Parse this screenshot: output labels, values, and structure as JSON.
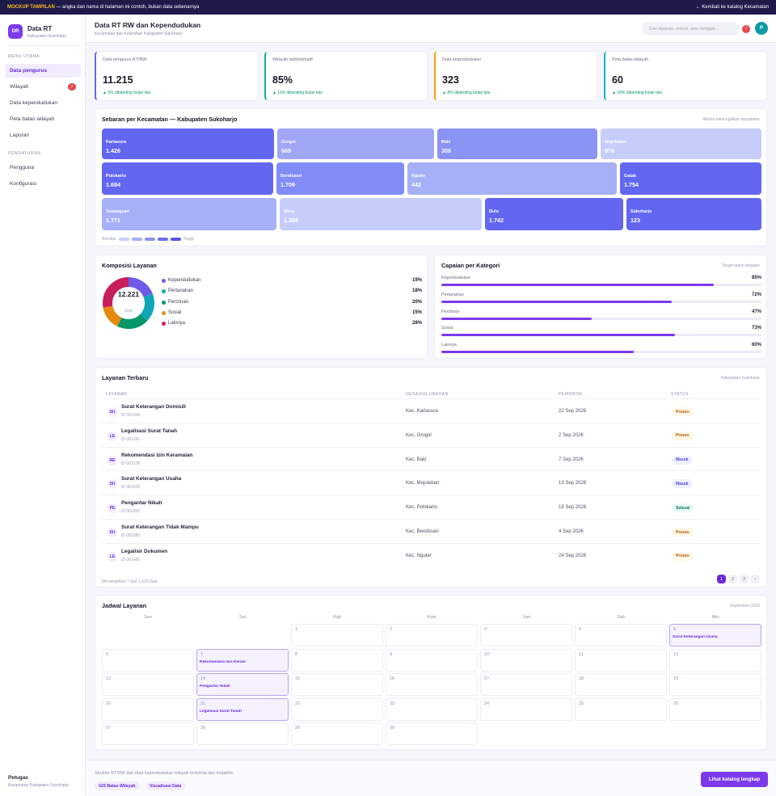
{
  "banner": {
    "tag": "MOCKUP TAMPILAN",
    "text": " — angka dan nama di halaman ini contoh, bukan data sebenarnya",
    "back": "← Kembali ke katalog Kecamatan"
  },
  "brand": {
    "logo": "DR",
    "title": "Data RT",
    "subtitle": "Kabupaten Sukoharjo"
  },
  "sidebar": {
    "section_main": "MENU UTAMA",
    "section_settings": "PENGATURAN",
    "items": [
      {
        "label": "Data pengurus",
        "active": true
      },
      {
        "label": "Wilayah",
        "badge": "7"
      },
      {
        "label": "Data kependudukan"
      },
      {
        "label": "Peta batas wilayah"
      },
      {
        "label": "Laporan"
      }
    ],
    "settings": [
      {
        "label": "Pengguna"
      },
      {
        "label": "Konfigurasi"
      }
    ],
    "footer": {
      "role": "Petugas",
      "area": "Kecamatan Kabupaten Sukoharjo"
    }
  },
  "header": {
    "title": "Data RT RW dan Kependudukan",
    "subtitle": "Kecamatan dan Kelurahan Kabupaten Sukoharjo",
    "search_placeholder": "Cari layanan, nomor, atau tanggal...",
    "notif_count": "7",
    "avatar": "P"
  },
  "stats": [
    {
      "label": "Data pengurus RT/RW",
      "value": "11.215",
      "delta": "▲ 5% dibanding bulan lalu",
      "accent": "#6366f1"
    },
    {
      "label": "Wilayah administratif",
      "value": "85%",
      "delta": "▲ 11% dibanding bulan lalu",
      "accent": "#10b981"
    },
    {
      "label": "Data kependudukan",
      "value": "323",
      "delta": "▲ 8% dibanding bulan lalu",
      "accent": "#f59e0b"
    },
    {
      "label": "Peta batas wilayah",
      "value": "60",
      "delta": "▲ 18% dibanding bulan lalu",
      "accent": "#06b6d4"
    }
  ],
  "treemap": {
    "title": "Sebaran per Kecamatan — Kabupaten Sukoharjo",
    "note": "Warna menunjukkan kepadatan",
    "legend_low": "Rendah",
    "legend_high": "Tinggi",
    "legend_colors": [
      "#c7cdfb",
      "#a5b0f7",
      "#8b93f4",
      "#6d6ff0",
      "#5b55e6"
    ],
    "tiles": [
      {
        "name": "Kartasura",
        "value": "1.426",
        "color": "#6366f1"
      },
      {
        "name": "Grogol",
        "value": "669",
        "color": "#9fa6f5"
      },
      {
        "name": "Baki",
        "value": "306",
        "color": "#8b93f4"
      },
      {
        "name": "Mojolaban",
        "value": "676",
        "color": "#c7cdfb"
      },
      {
        "name": "Polokarto",
        "value": "1.694",
        "color": "#6366f1"
      },
      {
        "name": "Bendosari",
        "value": "1.709",
        "color": "#818cf8"
      },
      {
        "name": "Nguter",
        "value": "442",
        "color": "#a5b0f7"
      },
      {
        "name": "Gatak",
        "value": "1.754",
        "color": "#6366f1"
      },
      {
        "name": "Tawangsari",
        "value": "1.771",
        "color": "#a5b0f7"
      },
      {
        "name": "Weru",
        "value": "1.308",
        "color": "#c7cdfb"
      },
      {
        "name": "Bulu",
        "value": "1.742",
        "color": "#6366f1"
      },
      {
        "name": "Sukoharjo",
        "value": "123",
        "color": "#6366f1"
      }
    ]
  },
  "composition": {
    "title": "Komposisi Layanan",
    "total": "12.221",
    "total_label": "total",
    "items": [
      {
        "name": "Kependudukan",
        "pct": 19,
        "label": "19%",
        "color": "#6d5ce8"
      },
      {
        "name": "Pertanahan",
        "pct": 18,
        "label": "18%",
        "color": "#0ea5b7"
      },
      {
        "name": "Perizinan",
        "pct": 20,
        "label": "20%",
        "color": "#059669"
      },
      {
        "name": "Sosial",
        "pct": 15,
        "label": "15%",
        "color": "#e68a0c"
      },
      {
        "name": "Lainnya",
        "pct": 28,
        "label": "28%",
        "color": "#c81e5b"
      }
    ]
  },
  "achievement": {
    "title": "Capaian per Kategori",
    "note": "Target tahun berjalan",
    "items": [
      {
        "name": "Kependudukan",
        "value": 85,
        "label": "85%"
      },
      {
        "name": "Pertanahan",
        "value": 72,
        "label": "72%"
      },
      {
        "name": "Perizinan",
        "value": 47,
        "label": "47%"
      },
      {
        "name": "Sosial",
        "value": 73,
        "label": "73%"
      },
      {
        "name": "Lainnya",
        "value": 60,
        "label": "60%"
      }
    ]
  },
  "services": {
    "title": "Layanan Terbaru",
    "note": "Kabupaten Sukoharjo",
    "columns": [
      "LAYANAN",
      "DESA/KELURAHAN",
      "PEMOHON",
      "STATUS"
    ],
    "rows": [
      {
        "ini": "SU",
        "title": "Surat Keterangan Domisili",
        "id": "ID 001204",
        "place": "Kec. Kartasura",
        "date": "22 Sep 2026",
        "status": "Proses"
      },
      {
        "ini": "LE",
        "title": "Legalisasi Surat Tanah",
        "id": "ID 001241",
        "place": "Kec. Grogol",
        "date": "2 Sep 2026",
        "status": "Proses"
      },
      {
        "ini": "RE",
        "title": "Rekomendasi Izin Keramaian",
        "id": "ID 001278",
        "place": "Kec. Baki",
        "date": "7 Sep 2026",
        "status": "Masuk"
      },
      {
        "ini": "SU",
        "title": "Surat Keterangan Usaha",
        "id": "ID 001315",
        "place": "Kec. Mojolaban",
        "date": "13 Sep 2026",
        "status": "Masuk"
      },
      {
        "ini": "PE",
        "title": "Pengantar Nikah",
        "id": "ID 001352",
        "place": "Kec. Polokarto",
        "date": "18 Sep 2026",
        "status": "Selesai"
      },
      {
        "ini": "SU",
        "title": "Surat Keterangan Tidak Mampu",
        "id": "ID 001389",
        "place": "Kec. Bendosari",
        "date": "4 Sep 2026",
        "status": "Proses"
      },
      {
        "ini": "LE",
        "title": "Legalisir Dokumen",
        "id": "ID 001426",
        "place": "Kec. Nguter",
        "date": "24 Sep 2026",
        "status": "Proses"
      }
    ],
    "summary": "Menampilkan 7 dari 1.620 data",
    "pages": [
      "1",
      "2",
      "3",
      "›"
    ]
  },
  "schedule": {
    "title": "Jadwal Layanan",
    "month": "September 2026",
    "days": [
      "Sen",
      "Sel",
      "Rab",
      "Kam",
      "Jum",
      "Sab",
      "Min"
    ],
    "cells": [
      {
        "d": "1",
        "ev": ""
      },
      {
        "d": "2",
        "ev": ""
      },
      {
        "d": "3",
        "ev": ""
      },
      {
        "d": "4",
        "ev": ""
      },
      {
        "d": "5",
        "ev": "Surat Keterangan Usaha"
      },
      {
        "d": "6",
        "ev": ""
      },
      {
        "d": "7",
        "ev": "Rekomendasi Izin Keram"
      },
      {
        "d": "8",
        "ev": ""
      },
      {
        "d": "9",
        "ev": ""
      },
      {
        "d": "10",
        "ev": ""
      },
      {
        "d": "11",
        "ev": ""
      },
      {
        "d": "12",
        "ev": ""
      },
      {
        "d": "13",
        "ev": ""
      },
      {
        "d": "14",
        "ev": "Pengantar Nikah"
      },
      {
        "d": "15",
        "ev": ""
      },
      {
        "d": "16",
        "ev": ""
      },
      {
        "d": "17",
        "ev": ""
      },
      {
        "d": "18",
        "ev": ""
      },
      {
        "d": "19",
        "ev": ""
      },
      {
        "d": "20",
        "ev": ""
      },
      {
        "d": "21",
        "ev": "Legalisasi Surat Tanah"
      },
      {
        "d": "22",
        "ev": ""
      },
      {
        "d": "23",
        "ev": ""
      },
      {
        "d": "24",
        "ev": ""
      },
      {
        "d": "25",
        "ev": ""
      },
      {
        "d": "26",
        "ev": ""
      },
      {
        "d": "27",
        "ev": ""
      },
      {
        "d": "28",
        "ev": ""
      },
      {
        "d": "29",
        "ev": ""
      },
      {
        "d": "30",
        "ev": ""
      }
    ]
  },
  "footer": {
    "note": "Struktur RT/RW dan data kependudukan wilayah terkelola dan mutakhir.",
    "chips": [
      "GIS Batas Wilayah",
      "Visualisasi Data"
    ],
    "cta": "Lihat katalog lengkap"
  }
}
